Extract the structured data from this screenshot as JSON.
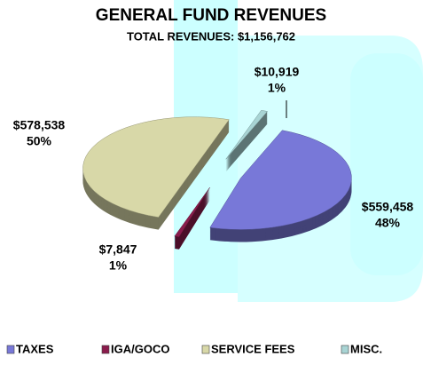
{
  "chart_data": {
    "type": "pie3d",
    "title": "GENERAL FUND REVENUES",
    "subtitle": "TOTAL REVENUES: $1,156,762",
    "categories": [
      "TAXES",
      "IGA/GOCO",
      "SERVICE FEES",
      "MISC."
    ],
    "values": [
      559458,
      7847,
      578538,
      10919
    ],
    "value_labels": [
      "$559,458",
      "$7,847",
      "$578,538",
      "$10,919"
    ],
    "percent_labels": [
      "48%",
      "1%",
      "50%",
      "1%"
    ],
    "colors": [
      "#7878d8",
      "#8a1c4c",
      "#d8d8a8",
      "#a8d4d4"
    ],
    "legend": "bottom"
  }
}
